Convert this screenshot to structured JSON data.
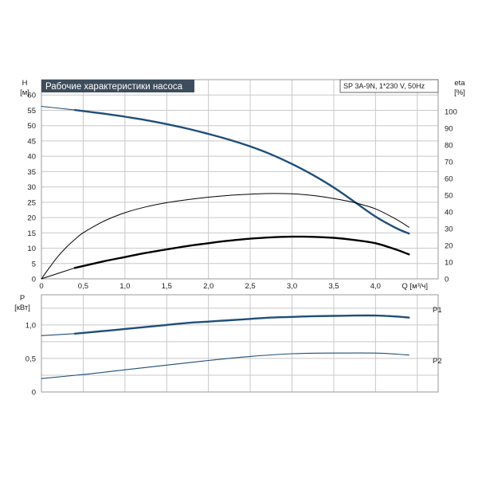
{
  "title": "Рабочие характеристики насоса",
  "model_label": "SP 3A-9N, 1*230 V, 50Hz",
  "colors": {
    "curve_blue": "#1f4e79",
    "curve_black": "#000000",
    "title_bg": "#3d4d5c",
    "grid": "#c8c8c8"
  },
  "chart_data": [
    {
      "type": "line",
      "xlabel": "Q [м³/ч]",
      "ylabel": "H\n[м]",
      "y2label": "eta\n[%]",
      "xlim": [
        0,
        4.75
      ],
      "ylim": [
        0,
        65
      ],
      "y2lim": [
        0,
        119
      ],
      "x_ticks": [
        "0",
        "0,5",
        "1,0",
        "1,5",
        "2,0",
        "2,5",
        "3,0",
        "3,5",
        "4,0",
        "Q [м³/ч]"
      ],
      "y_ticks": [
        "0",
        "5",
        "10",
        "15",
        "20",
        "25",
        "30",
        "35",
        "40",
        "45",
        "50",
        "55",
        "60"
      ],
      "y2_ticks": [
        "0",
        "10",
        "20",
        "30",
        "40",
        "50",
        "60",
        "70",
        "80",
        "90",
        "100"
      ],
      "grid": true,
      "series": [
        {
          "axis": "left",
          "style": "thin-blue",
          "x": [
            0,
            0.4
          ],
          "y": [
            56.3,
            55.1
          ]
        },
        {
          "axis": "left",
          "style": "thick-blue",
          "x": [
            0.4,
            0.75,
            1.0,
            1.25,
            1.5,
            1.75,
            2.0,
            2.25,
            2.5,
            2.75,
            3.0,
            3.25,
            3.5,
            3.75,
            4.0,
            4.25,
            4.4
          ],
          "y": [
            55.1,
            53.9,
            52.9,
            51.8,
            50.5,
            49.0,
            47.3,
            45.4,
            43.2,
            40.6,
            37.5,
            33.9,
            29.8,
            25.1,
            20.3,
            16.5,
            14.8
          ]
        },
        {
          "axis": "right",
          "style": "thin-black",
          "x": [
            0,
            0.1,
            0.2,
            0.3,
            0.4,
            0.5,
            0.75,
            1.0,
            1.25,
            1.5,
            1.75,
            2.0,
            2.25,
            2.5,
            2.75,
            3.0,
            3.25,
            3.5,
            3.75,
            4.0,
            4.25,
            4.4
          ],
          "y": [
            0,
            7,
            13.5,
            19,
            23.5,
            27.5,
            34.5,
            39.5,
            43,
            45.5,
            47.3,
            48.8,
            49.9,
            50.6,
            51,
            50.8,
            49.8,
            48,
            45.5,
            41.8,
            35.5,
            30.8
          ]
        },
        {
          "axis": "right",
          "style": "thin-black",
          "x": [
            0,
            0.4
          ],
          "y": [
            0,
            6.5
          ]
        },
        {
          "axis": "right",
          "style": "thick-black",
          "x": [
            0.4,
            0.75,
            1.0,
            1.25,
            1.5,
            1.75,
            2.0,
            2.25,
            2.5,
            2.75,
            3.0,
            3.25,
            3.5,
            3.75,
            4.0,
            4.25,
            4.4
          ],
          "y": [
            6.5,
            10.5,
            13,
            15.5,
            17.6,
            19.6,
            21.3,
            22.8,
            24,
            24.8,
            25.2,
            25.1,
            24.5,
            23.2,
            21.3,
            17.4,
            14.6
          ]
        }
      ]
    },
    {
      "type": "line",
      "ylabel": "P\n[кВт]",
      "xlim": [
        0,
        4.75
      ],
      "ylim": [
        0,
        1.45
      ],
      "y_ticks": [
        "0",
        "0,5",
        "1,0"
      ],
      "grid": true,
      "series": [
        {
          "name": "P1",
          "style": "thin-blue",
          "x": [
            0,
            0.4
          ],
          "y": [
            0.84,
            0.87
          ]
        },
        {
          "name": "P1",
          "style": "thick-blue",
          "x": [
            0.4,
            0.75,
            1.0,
            1.25,
            1.5,
            1.75,
            2.0,
            2.25,
            2.5,
            2.75,
            3.0,
            3.25,
            3.5,
            3.75,
            4.0,
            4.25,
            4.4
          ],
          "y": [
            0.87,
            0.91,
            0.94,
            0.97,
            1.0,
            1.03,
            1.05,
            1.07,
            1.09,
            1.11,
            1.12,
            1.13,
            1.135,
            1.14,
            1.14,
            1.125,
            1.11
          ]
        },
        {
          "name": "P2",
          "style": "thin-blue",
          "x": [
            0,
            0.5,
            1.0,
            1.5,
            2.0,
            2.5,
            3.0,
            3.5,
            4.0,
            4.25,
            4.4
          ],
          "y": [
            0.2,
            0.26,
            0.33,
            0.4,
            0.47,
            0.53,
            0.57,
            0.58,
            0.58,
            0.565,
            0.55
          ]
        }
      ]
    }
  ]
}
